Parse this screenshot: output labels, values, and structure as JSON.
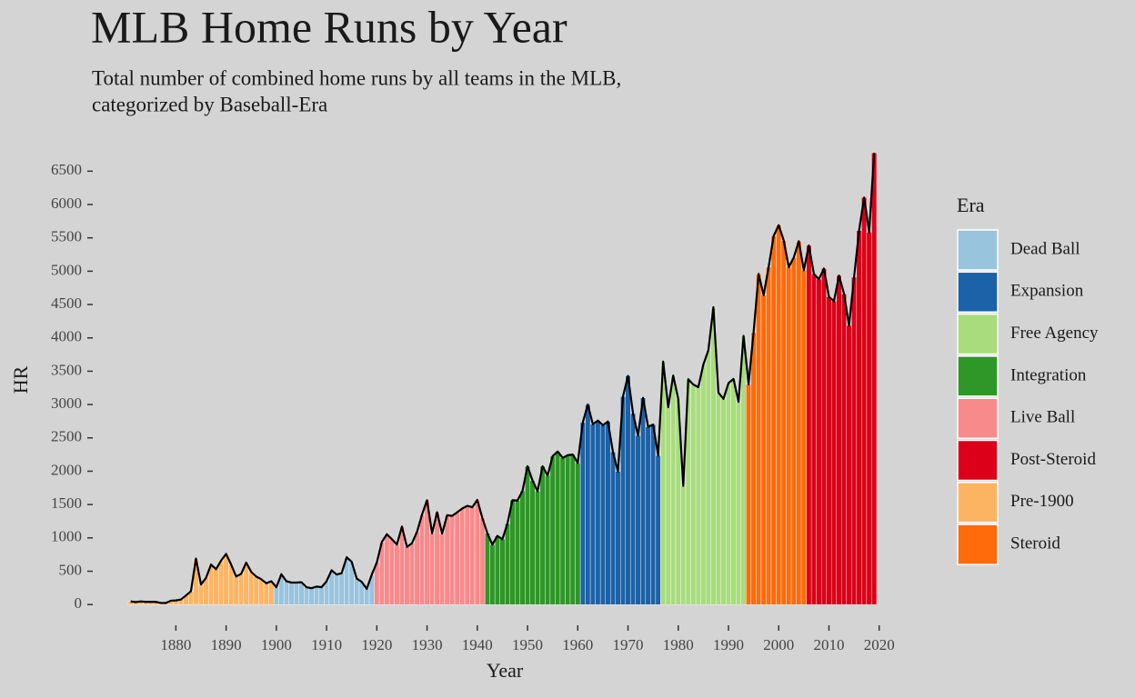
{
  "chart_data": {
    "type": "bar",
    "title": "MLB Home Runs by Year",
    "subtitle": [
      "Total number of combined home runs by all teams in the MLB,",
      "categorized by Baseball-Era"
    ],
    "x_label": "Year",
    "y_label": "HR",
    "legend_title": "Era",
    "xlim": [
      1864,
      2021.5
    ],
    "ylim": [
      -270,
      6750
    ],
    "xticks": [
      1880,
      1890,
      1900,
      1910,
      1920,
      1930,
      1940,
      1950,
      1960,
      1970,
      1980,
      1990,
      2000,
      2010,
      2020
    ],
    "yticks": [
      0,
      500,
      1000,
      1500,
      2000,
      2500,
      3000,
      3500,
      4000,
      4500,
      5000,
      5500,
      6000,
      6500
    ],
    "legend": "right",
    "line_color": "#000000",
    "series": [
      {
        "name": "Dead Ball",
        "color": "#98c4de",
        "x": [
          1900,
          1901,
          1902,
          1903,
          1904,
          1905,
          1906,
          1907,
          1908,
          1909,
          1910,
          1911,
          1912,
          1913,
          1914,
          1915,
          1916,
          1917,
          1918,
          1919
        ],
        "values": [
          260,
          455,
          350,
          330,
          330,
          335,
          260,
          245,
          270,
          260,
          350,
          515,
          450,
          470,
          710,
          640,
          390,
          340,
          235,
          450
        ]
      },
      {
        "name": "Expansion",
        "color": "#1c62a8",
        "x": [
          1961,
          1962,
          1963,
          1964,
          1965,
          1966,
          1967,
          1968,
          1969,
          1970,
          1971,
          1972,
          1973,
          1974,
          1975,
          1976
        ],
        "values": [
          2730,
          3000,
          2705,
          2760,
          2690,
          2745,
          2290,
          1995,
          3120,
          3430,
          2865,
          2535,
          3100,
          2665,
          2700,
          2235
        ]
      },
      {
        "name": "Free Agency",
        "color": "#a8dc7c",
        "x": [
          1977,
          1978,
          1979,
          1980,
          1981,
          1982,
          1983,
          1984,
          1985,
          1986,
          1987,
          1988,
          1989,
          1990,
          1991,
          1992,
          1993
        ],
        "values": [
          3645,
          2960,
          3435,
          3085,
          1780,
          3380,
          3300,
          3260,
          3600,
          3815,
          4460,
          3180,
          3085,
          3320,
          3385,
          3040,
          4030
        ]
      },
      {
        "name": "Integration",
        "color": "#2f9628",
        "x": [
          1942,
          1943,
          1944,
          1945,
          1946,
          1947,
          1948,
          1949,
          1950,
          1951,
          1952,
          1953,
          1954,
          1955,
          1956,
          1957,
          1958,
          1959,
          1960
        ],
        "values": [
          1070,
          900,
          1030,
          980,
          1215,
          1565,
          1560,
          1705,
          2075,
          1860,
          1700,
          2075,
          1935,
          2225,
          2295,
          2200,
          2240,
          2250,
          2125
        ]
      },
      {
        "name": "Live Ball",
        "color": "#f88a8c",
        "x": [
          1920,
          1921,
          1922,
          1923,
          1924,
          1925,
          1926,
          1927,
          1928,
          1929,
          1930,
          1931,
          1932,
          1933,
          1934,
          1935,
          1936,
          1937,
          1938,
          1939,
          1940,
          1941
        ],
        "values": [
          630,
          940,
          1055,
          980,
          900,
          1170,
          865,
          920,
          1090,
          1350,
          1565,
          1070,
          1385,
          1065,
          1340,
          1330,
          1385,
          1440,
          1480,
          1460,
          1570,
          1300
        ]
      },
      {
        "name": "Post-Steroid",
        "color": "#dc0018",
        "x": [
          2006,
          2007,
          2008,
          2009,
          2010,
          2011,
          2012,
          2013,
          2014,
          2015,
          2016,
          2017,
          2018,
          2019
        ],
        "values": [
          5385,
          4960,
          4880,
          5040,
          4615,
          4550,
          4935,
          4660,
          4185,
          4910,
          5610,
          6105,
          5585,
          6775
        ]
      },
      {
        "name": "Pre-1900",
        "color": "#fdb462",
        "x": [
          1871,
          1872,
          1873,
          1874,
          1875,
          1876,
          1877,
          1878,
          1879,
          1880,
          1881,
          1882,
          1883,
          1884,
          1885,
          1886,
          1887,
          1888,
          1889,
          1890,
          1891,
          1892,
          1893,
          1894,
          1895,
          1896,
          1897,
          1898,
          1899
        ],
        "values": [
          47,
          37,
          47,
          40,
          40,
          40,
          24,
          23,
          58,
          62,
          75,
          135,
          200,
          690,
          300,
          400,
          600,
          530,
          660,
          760,
          600,
          420,
          460,
          630,
          490,
          420,
          380,
          320,
          350
        ]
      },
      {
        "name": "Steroid",
        "color": "#ff6a0a",
        "x": [
          1994,
          1995,
          1996,
          1997,
          1998,
          1999,
          2000,
          2001,
          2002,
          2003,
          2004,
          2005
        ],
        "values": [
          3305,
          4080,
          4960,
          4640,
          5065,
          5530,
          5690,
          5460,
          5060,
          5205,
          5450,
          5015
        ]
      }
    ]
  }
}
